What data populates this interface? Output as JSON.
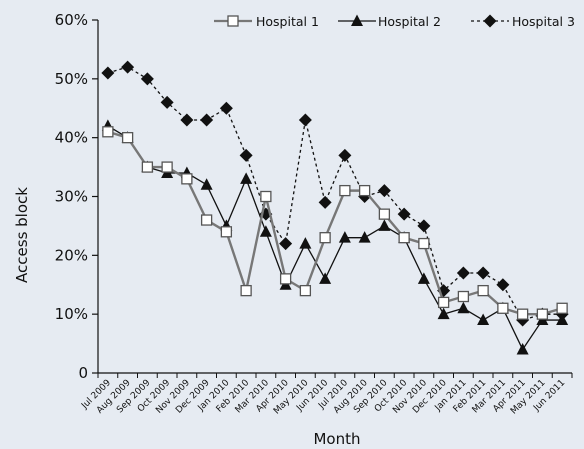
{
  "chart_data": {
    "type": "line",
    "title": "",
    "xlabel": "Month",
    "ylabel": "Access block",
    "ylim": [
      0,
      60
    ],
    "yticks": [
      0,
      10,
      20,
      30,
      40,
      50,
      60
    ],
    "ytick_labels": [
      "0",
      "10%",
      "20%",
      "30%",
      "40%",
      "50%",
      "60%"
    ],
    "grid": false,
    "legend_position": "top",
    "categories": [
      "Jul 2009",
      "Aug 2009",
      "Sep 2009",
      "Oct 2009",
      "Nov 2009",
      "Dec 2009",
      "Jan 2010",
      "Feb 2010",
      "Mar 2010",
      "Apr 2010",
      "May 2010",
      "Jun 2010",
      "Jul 2010",
      "Aug 2010",
      "Sep 2010",
      "Oct 2010",
      "Nov 2010",
      "Dec 2010",
      "Jan 2011",
      "Feb 2011",
      "Mar 2011",
      "Apr 2011",
      "May 2011",
      "Jun 2011"
    ],
    "series": [
      {
        "name": "Hospital 1",
        "marker": "square-open",
        "line_style": "solid",
        "color": "#777777",
        "values": [
          41,
          40,
          35,
          35,
          33,
          26,
          24,
          14,
          30,
          16,
          14,
          23,
          31,
          31,
          27,
          23,
          22,
          12,
          13,
          14,
          11,
          10,
          10,
          11
        ]
      },
      {
        "name": "Hospital 2",
        "marker": "triangle-filled",
        "line_style": "solid",
        "color": "#111111",
        "values": [
          42,
          40,
          35,
          34,
          34,
          32,
          25,
          33,
          24,
          15,
          22,
          16,
          23,
          23,
          25,
          23,
          16,
          10,
          11,
          9,
          11,
          4,
          9,
          9
        ]
      },
      {
        "name": "Hospital 3",
        "marker": "diamond-filled",
        "line_style": "dashed",
        "color": "#111111",
        "values": [
          51,
          52,
          50,
          46,
          43,
          43,
          45,
          37,
          27,
          22,
          43,
          29,
          37,
          30,
          31,
          27,
          25,
          14,
          17,
          17,
          15,
          9,
          10,
          10
        ]
      }
    ]
  }
}
